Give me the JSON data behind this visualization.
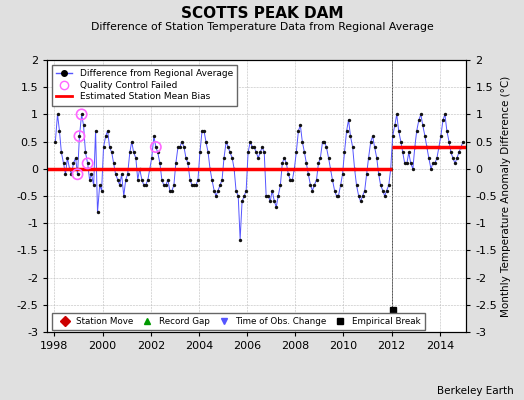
{
  "title": "SCOTTS PEAK DAM",
  "subtitle": "Difference of Station Temperature Data from Regional Average",
  "ylabel_right": "Monthly Temperature Anomaly Difference (°C)",
  "xlim_left": 1997.7,
  "xlim_right": 2015.1,
  "ylim_bottom": -3.0,
  "ylim_top": 2.0,
  "bias_early_y": 0.0,
  "bias_late_y": 0.4,
  "bias_break_x": 2012.0,
  "xticks": [
    1998,
    2000,
    2002,
    2004,
    2006,
    2008,
    2010,
    2012,
    2014
  ],
  "yticks": [
    -3,
    -2.5,
    -2,
    -1.5,
    -1,
    -0.5,
    0,
    0.5,
    1,
    1.5,
    2
  ],
  "line_color": "#5555ff",
  "dot_color": "#111111",
  "bias_color": "#ff0000",
  "qc_color": "#ff66ff",
  "emp_break_x": 2012.04,
  "emp_break_y": -2.6,
  "bg_color": "#e0e0e0",
  "plot_bg": "#ffffff",
  "grid_color": "#bbbbbb",
  "watermark": "Berkeley Earth",
  "data_x": [
    1998.04,
    1998.13,
    1998.21,
    1998.29,
    1998.38,
    1998.46,
    1998.54,
    1998.63,
    1998.71,
    1998.79,
    1998.88,
    1998.96,
    1999.04,
    1999.13,
    1999.21,
    1999.29,
    1999.38,
    1999.46,
    1999.54,
    1999.63,
    1999.71,
    1999.79,
    1999.88,
    1999.96,
    2000.04,
    2000.13,
    2000.21,
    2000.29,
    2000.38,
    2000.46,
    2000.54,
    2000.63,
    2000.71,
    2000.79,
    2000.88,
    2000.96,
    2001.04,
    2001.13,
    2001.21,
    2001.29,
    2001.38,
    2001.46,
    2001.54,
    2001.63,
    2001.71,
    2001.79,
    2001.88,
    2001.96,
    2002.04,
    2002.13,
    2002.21,
    2002.29,
    2002.38,
    2002.46,
    2002.54,
    2002.63,
    2002.71,
    2002.79,
    2002.88,
    2002.96,
    2003.04,
    2003.13,
    2003.21,
    2003.29,
    2003.38,
    2003.46,
    2003.54,
    2003.63,
    2003.71,
    2003.79,
    2003.88,
    2003.96,
    2004.04,
    2004.13,
    2004.21,
    2004.29,
    2004.38,
    2004.46,
    2004.54,
    2004.63,
    2004.71,
    2004.79,
    2004.88,
    2004.96,
    2005.04,
    2005.13,
    2005.21,
    2005.29,
    2005.38,
    2005.46,
    2005.54,
    2005.63,
    2005.71,
    2005.79,
    2005.88,
    2005.96,
    2006.04,
    2006.13,
    2006.21,
    2006.29,
    2006.38,
    2006.46,
    2006.54,
    2006.63,
    2006.71,
    2006.79,
    2006.88,
    2006.96,
    2007.04,
    2007.13,
    2007.21,
    2007.29,
    2007.38,
    2007.46,
    2007.54,
    2007.63,
    2007.71,
    2007.79,
    2007.88,
    2007.96,
    2008.04,
    2008.13,
    2008.21,
    2008.29,
    2008.38,
    2008.46,
    2008.54,
    2008.63,
    2008.71,
    2008.79,
    2008.88,
    2008.96,
    2009.04,
    2009.13,
    2009.21,
    2009.29,
    2009.38,
    2009.46,
    2009.54,
    2009.63,
    2009.71,
    2009.79,
    2009.88,
    2009.96,
    2010.04,
    2010.13,
    2010.21,
    2010.29,
    2010.38,
    2010.46,
    2010.54,
    2010.63,
    2010.71,
    2010.79,
    2010.88,
    2010.96,
    2011.04,
    2011.13,
    2011.21,
    2011.29,
    2011.38,
    2011.46,
    2011.54,
    2011.63,
    2011.71,
    2011.79,
    2011.88,
    2011.96,
    2012.04,
    2012.13,
    2012.21,
    2012.29,
    2012.38,
    2012.46,
    2012.54,
    2012.63,
    2012.71,
    2012.79,
    2012.88,
    2012.96,
    2013.04,
    2013.13,
    2013.21,
    2013.29,
    2013.38,
    2013.46,
    2013.54,
    2013.63,
    2013.71,
    2013.79,
    2013.88,
    2013.96,
    2014.04,
    2014.13,
    2014.21,
    2014.29,
    2014.38,
    2014.46,
    2014.54,
    2014.63,
    2014.71,
    2014.79,
    2014.88,
    2014.96
  ],
  "data_y": [
    0.5,
    1.0,
    0.7,
    0.3,
    0.1,
    -0.1,
    0.2,
    0.0,
    -0.1,
    0.1,
    0.2,
    -0.1,
    0.6,
    1.0,
    0.8,
    0.3,
    0.1,
    -0.2,
    -0.1,
    -0.3,
    0.7,
    -0.8,
    -0.3,
    -0.4,
    0.4,
    0.6,
    0.7,
    0.4,
    0.3,
    0.1,
    -0.1,
    -0.2,
    -0.3,
    -0.1,
    -0.5,
    -0.2,
    -0.1,
    0.3,
    0.5,
    0.3,
    0.2,
    -0.2,
    0.0,
    -0.2,
    -0.3,
    -0.3,
    -0.2,
    0.0,
    0.2,
    0.6,
    0.4,
    0.3,
    0.1,
    -0.2,
    -0.3,
    -0.3,
    -0.2,
    -0.4,
    -0.4,
    -0.3,
    0.1,
    0.4,
    0.4,
    0.5,
    0.4,
    0.2,
    0.1,
    -0.2,
    -0.3,
    -0.3,
    -0.3,
    -0.2,
    0.3,
    0.7,
    0.7,
    0.5,
    0.3,
    0.0,
    -0.2,
    -0.4,
    -0.5,
    -0.4,
    -0.3,
    -0.2,
    0.2,
    0.5,
    0.4,
    0.3,
    0.2,
    0.0,
    -0.4,
    -0.5,
    -1.3,
    -0.6,
    -0.5,
    -0.4,
    0.3,
    0.5,
    0.4,
    0.4,
    0.3,
    0.2,
    0.3,
    0.4,
    0.3,
    -0.5,
    -0.5,
    -0.6,
    -0.4,
    -0.6,
    -0.7,
    -0.5,
    -0.3,
    0.1,
    0.2,
    0.1,
    -0.1,
    -0.2,
    -0.2,
    0.0,
    0.3,
    0.7,
    0.8,
    0.5,
    0.3,
    0.1,
    -0.1,
    -0.3,
    -0.4,
    -0.3,
    -0.2,
    0.1,
    0.2,
    0.5,
    0.5,
    0.4,
    0.2,
    0.0,
    -0.2,
    -0.4,
    -0.5,
    -0.5,
    -0.3,
    -0.1,
    0.3,
    0.7,
    0.9,
    0.6,
    0.4,
    0.0,
    -0.3,
    -0.5,
    -0.6,
    -0.5,
    -0.4,
    -0.1,
    0.2,
    0.5,
    0.6,
    0.4,
    0.2,
    -0.1,
    -0.3,
    -0.4,
    -0.5,
    -0.4,
    -0.3,
    0.0,
    0.6,
    0.8,
    1.0,
    0.7,
    0.5,
    0.3,
    0.1,
    0.1,
    0.3,
    0.1,
    0.0,
    0.4,
    0.7,
    0.9,
    1.0,
    0.8,
    0.6,
    0.4,
    0.2,
    0.0,
    0.1,
    0.1,
    0.2,
    0.4,
    0.6,
    0.9,
    1.0,
    0.7,
    0.5,
    0.3,
    0.2,
    0.1,
    0.2,
    0.3,
    0.4,
    0.5
  ],
  "qc_x": [
    1998.96,
    1999.04,
    1999.13,
    1999.38,
    2002.21
  ],
  "qc_y": [
    -0.1,
    0.6,
    1.0,
    0.1,
    0.4
  ]
}
